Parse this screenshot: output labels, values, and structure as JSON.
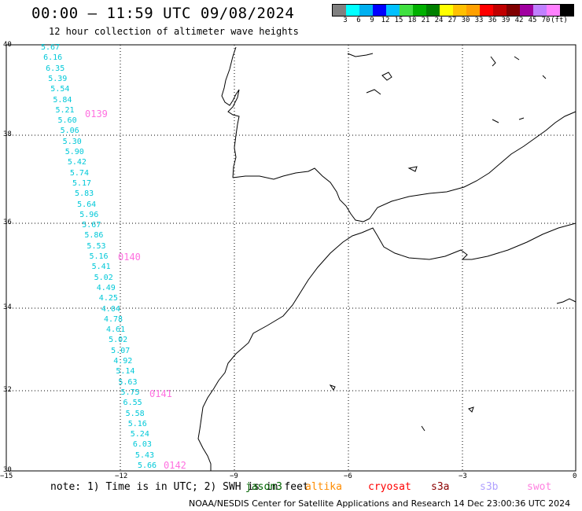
{
  "title": "00:00 – 11:59 UTC 09/08/2024",
  "subtitle": "12 hour collection of altimeter wave heights",
  "legend": {
    "colors": [
      "#808080",
      "#00ffff",
      "#00b0f0",
      "#0000ff",
      "#00c0ff",
      "#40e040",
      "#00b000",
      "#008000",
      "#ffff00",
      "#ffc000",
      "#ffa000",
      "#ff0000",
      "#c00000",
      "#800000",
      "#a000a0",
      "#c080ff",
      "#ff80ff",
      "#000000"
    ],
    "labels": [
      "3",
      "6",
      "9",
      "12",
      "15",
      "18",
      "21",
      "24",
      "27",
      "30",
      "33",
      "36",
      "39",
      "42",
      "45",
      "70",
      "(ft)"
    ]
  },
  "axes": {
    "y_ticks": [
      "40",
      "38",
      "36",
      "34",
      "32",
      "30"
    ],
    "x_ticks": [
      "−15",
      "−12",
      "−9",
      "−6",
      "−3",
      "0"
    ]
  },
  "swh_values": [
    "5.67",
    "6.16",
    "6.35",
    "5.39",
    "5.54",
    "5.84",
    "5.21",
    "5.60",
    "5.06",
    "5.30",
    "5.90",
    "5.42",
    "5.74",
    "5.17",
    "5.83",
    "5.64",
    "5.96",
    "5.67",
    "5.86",
    "5.53",
    "5.16",
    "5.41",
    "5.02",
    "4.49",
    "4.25",
    "4.04",
    "4.78",
    "4.61",
    "5.02",
    "5.07",
    "4.92",
    "5.14",
    "5.63",
    "5.75",
    "6.55",
    "5.58",
    "5.16",
    "5.24",
    "6.03",
    "5.43",
    "5.66"
  ],
  "pass_labels": [
    "0139",
    "0140",
    "0141",
    "0142"
  ],
  "note": "note:  1) Time is in UTC; 2) SWH is in feet",
  "satellites": [
    {
      "name": "jason3",
      "color": "#006400"
    },
    {
      "name": "altika",
      "color": "#ff8c00"
    },
    {
      "name": "cryosat",
      "color": "#ff0000"
    },
    {
      "name": "s3a",
      "color": "#8b0000"
    },
    {
      "name": "s3b",
      "color": "#b0a0ff"
    },
    {
      "name": "swot",
      "color": "#ff80e0"
    }
  ],
  "footer": "NOAA/NESDIS Center for Satellite Applications and Research    14 Dec 23:00:36 UTC 2024",
  "track_color": "#00c8d8",
  "pass_color": "#ff70e0"
}
